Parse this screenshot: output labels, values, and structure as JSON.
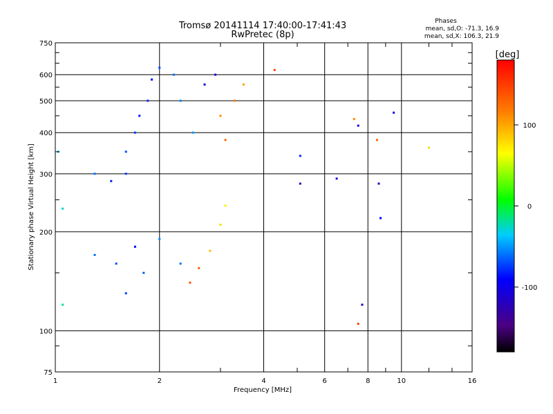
{
  "header": {
    "title_line1": "Tromsø 20141114 17:40:00-17:41:43",
    "title_line2": "RwPretec (8p)"
  },
  "stats": {
    "heading": "Phases",
    "line_o": "mean, sd,O: -71.3, 16.9",
    "line_x": "mean, sd,X: 106.3, 21.9"
  },
  "chart_data": {
    "type": "scatter",
    "title": "Tromsø 20141114 17:40:00-17:41:43",
    "subtitle": "RwPretec (8p)",
    "xlabel": "Frequency [MHz]",
    "ylabel": "Stationary phase Virtual Height [km]",
    "x_scale": "log",
    "y_scale": "log",
    "xlim": [
      1,
      16
    ],
    "ylim": [
      75,
      750
    ],
    "x_ticks": [
      1,
      2,
      4,
      6,
      8,
      10,
      16
    ],
    "x_tick_labels": [
      "1",
      "2",
      "4",
      "6",
      "8",
      "10",
      "16"
    ],
    "y_ticks": [
      75,
      100,
      200,
      300,
      400,
      500,
      600,
      750
    ],
    "y_tick_labels": [
      "75",
      "100",
      "200",
      "300",
      "400",
      "500",
      "600",
      "750"
    ],
    "grid": true,
    "colorbar": {
      "label": "[deg]",
      "range": [
        -180,
        180
      ],
      "ticks": [
        100,
        0,
        -100
      ],
      "tick_labels": [
        "100",
        "0",
        "-100"
      ]
    },
    "series": [
      {
        "name": "",
        "approx_points": [
          {
            "x": 1.02,
            "y": 350,
            "phase": -40
          },
          {
            "x": 1.05,
            "y": 235,
            "phase": -30
          },
          {
            "x": 1.05,
            "y": 120,
            "phase": -20
          },
          {
            "x": 1.3,
            "y": 300,
            "phase": -60
          },
          {
            "x": 1.45,
            "y": 285,
            "phase": -80
          },
          {
            "x": 1.6,
            "y": 300,
            "phase": -75
          },
          {
            "x": 1.6,
            "y": 350,
            "phase": -70
          },
          {
            "x": 1.7,
            "y": 400,
            "phase": -75
          },
          {
            "x": 1.75,
            "y": 450,
            "phase": -85
          },
          {
            "x": 1.85,
            "y": 500,
            "phase": -80
          },
          {
            "x": 1.9,
            "y": 580,
            "phase": -90
          },
          {
            "x": 2.0,
            "y": 630,
            "phase": -70
          },
          {
            "x": 2.2,
            "y": 600,
            "phase": -60
          },
          {
            "x": 2.3,
            "y": 500,
            "phase": -55
          },
          {
            "x": 2.5,
            "y": 400,
            "phase": -50
          },
          {
            "x": 2.7,
            "y": 560,
            "phase": -100
          },
          {
            "x": 2.9,
            "y": 600,
            "phase": -110
          },
          {
            "x": 3.0,
            "y": 450,
            "phase": 110
          },
          {
            "x": 3.1,
            "y": 380,
            "phase": 130
          },
          {
            "x": 3.3,
            "y": 500,
            "phase": 120
          },
          {
            "x": 3.5,
            "y": 560,
            "phase": 100
          },
          {
            "x": 1.3,
            "y": 170,
            "phase": -60
          },
          {
            "x": 1.5,
            "y": 160,
            "phase": -70
          },
          {
            "x": 1.6,
            "y": 130,
            "phase": -75
          },
          {
            "x": 1.7,
            "y": 180,
            "phase": -90
          },
          {
            "x": 1.8,
            "y": 150,
            "phase": -65
          },
          {
            "x": 2.0,
            "y": 190,
            "phase": -55
          },
          {
            "x": 2.3,
            "y": 160,
            "phase": -60
          },
          {
            "x": 2.45,
            "y": 140,
            "phase": 140
          },
          {
            "x": 2.6,
            "y": 155,
            "phase": 130
          },
          {
            "x": 2.8,
            "y": 175,
            "phase": 90
          },
          {
            "x": 3.0,
            "y": 210,
            "phase": 80
          },
          {
            "x": 3.1,
            "y": 240,
            "phase": 70
          },
          {
            "x": 4.3,
            "y": 620,
            "phase": 150
          },
          {
            "x": 5.1,
            "y": 340,
            "phase": -80
          },
          {
            "x": 5.1,
            "y": 280,
            "phase": -120
          },
          {
            "x": 6.5,
            "y": 290,
            "phase": -100
          },
          {
            "x": 7.3,
            "y": 440,
            "phase": 110
          },
          {
            "x": 7.5,
            "y": 420,
            "phase": -100
          },
          {
            "x": 8.5,
            "y": 380,
            "phase": 130
          },
          {
            "x": 8.6,
            "y": 280,
            "phase": -120
          },
          {
            "x": 8.7,
            "y": 220,
            "phase": -90
          },
          {
            "x": 9.5,
            "y": 460,
            "phase": -100
          },
          {
            "x": 12.0,
            "y": 360,
            "phase": 80
          },
          {
            "x": 7.7,
            "y": 120,
            "phase": -120
          },
          {
            "x": 7.5,
            "y": 105,
            "phase": 150
          }
        ]
      }
    ]
  }
}
